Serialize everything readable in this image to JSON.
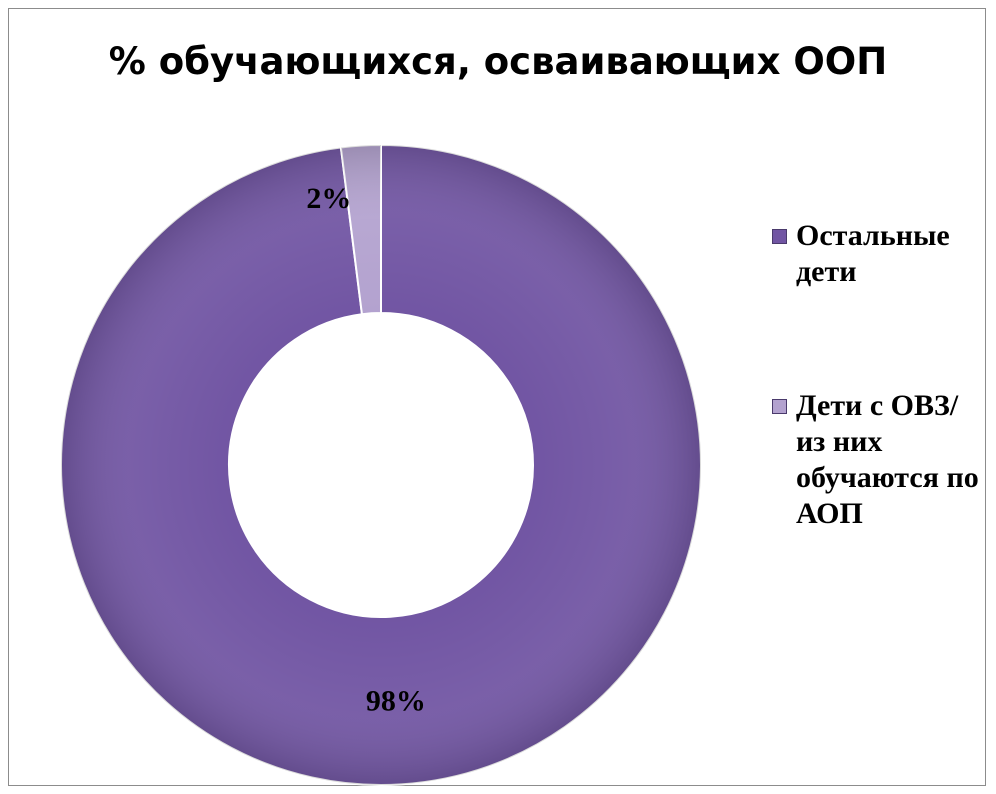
{
  "chart_data": {
    "type": "pie",
    "style": "doughnut",
    "title": "% обучающихся, осваивающих ООП",
    "slices": [
      {
        "label": "Остальные дети",
        "value": 98,
        "display": "98%",
        "color": "#7155a3"
      },
      {
        "label": "Дети с ОВЗ/ из них обучаются по АОП",
        "value": 2,
        "display": "2%",
        "color": "#b3a2cf"
      }
    ],
    "legend_position": "right"
  }
}
